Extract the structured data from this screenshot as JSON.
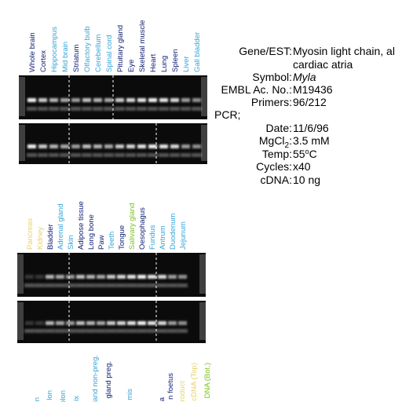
{
  "panels": [
    {
      "lanes": [
        {
          "label": "Whole brain",
          "color": "#0a1a6e"
        },
        {
          "label": "Cortex",
          "color": "#0a1a6e"
        },
        {
          "label": "Hippocampus",
          "color": "#35a3d6"
        },
        {
          "label": "Mid brain",
          "color": "#35a3d6"
        },
        {
          "label": "Striatum",
          "color": "#0a1a6e"
        },
        {
          "label": "Olfactory bulb",
          "color": "#35a3d6"
        },
        {
          "label": "Cerebellum",
          "color": "#35a3d6"
        },
        {
          "label": "Spinal cord",
          "color": "#35a3d6"
        },
        {
          "label": "Pituitary gland",
          "color": "#0a1a6e"
        },
        {
          "label": "Eye",
          "color": "#0a1a6e"
        },
        {
          "label": "Skeletal muscle",
          "color": "#0a1a6e"
        },
        {
          "label": "Heart",
          "color": "#0a1a6e"
        },
        {
          "label": "Lung",
          "color": "#0a1a6e"
        },
        {
          "label": "Spleen",
          "color": "#0a1a6e"
        },
        {
          "label": "Liver",
          "color": "#35a3d6"
        },
        {
          "label": "Gall bladder",
          "color": "#35a3d6"
        }
      ]
    },
    {
      "lanes": [
        {
          "label": "Pancreas",
          "color": "#e8d26a"
        },
        {
          "label": "Kidney",
          "color": "#e8d26a"
        },
        {
          "label": "Bladder",
          "color": "#0a1a6e"
        },
        {
          "label": "Adrenal gland",
          "color": "#35a3d6"
        },
        {
          "label": "Skin",
          "color": "#35a3d6"
        },
        {
          "label": "Adipose tissue",
          "color": "#0a1a6e"
        },
        {
          "label": "Long bone",
          "color": "#0a1a6e"
        },
        {
          "label": "Paw",
          "color": "#0a1a6e"
        },
        {
          "label": "Teeth",
          "color": "#35a3d6"
        },
        {
          "label": "Tongue",
          "color": "#0a1a6e"
        },
        {
          "label": "Salivary gland",
          "color": "#7cc21e"
        },
        {
          "label": "Oesophagus",
          "color": "#0a1a6e"
        },
        {
          "label": "Fundus",
          "color": "#35a3d6"
        },
        {
          "label": "Antrum",
          "color": "#35a3d6"
        },
        {
          "label": "Duodenum",
          "color": "#35a3d6"
        },
        {
          "label": "Jejunum",
          "color": "#35a3d6"
        }
      ]
    },
    {
      "lanes": [
        {
          "label": "n",
          "color": "#35a3d6"
        },
        {
          "label": "lon",
          "color": "#35a3d6"
        },
        {
          "label": "olon",
          "color": "#35a3d6"
        },
        {
          "label": "ix",
          "color": "#35a3d6"
        },
        {
          "label": "gland non-preg.",
          "color": "#35a3d6"
        },
        {
          "label": "gland preg.",
          "color": "#0a1a6e"
        },
        {
          "label": "mis",
          "color": "#35a3d6"
        },
        {
          "label": "a",
          "color": "#0a1a6e"
        },
        {
          "label": "n foetus",
          "color": "#0a1a6e"
        },
        {
          "label": "roduct",
          "color": "#e8d26a"
        },
        {
          "label": "cDNA (Top)",
          "color": "#e8d26a"
        },
        {
          "label": "DNA (Bot.)",
          "color": "#7cc21e"
        }
      ]
    }
  ],
  "info": {
    "gene_label": "Gene/EST:",
    "gene_value": "Myosin light chain, al",
    "gene_value_2": "cardiac atria",
    "symbol_label": "Symbol:",
    "symbol_value": "Myla",
    "embl_label": "EMBL Ac. No.:",
    "embl_value": "M19436",
    "primers_label": "Primers:",
    "primers_value": "96/212",
    "pcr_label": "PCR;",
    "date_label": "Date:",
    "date_value": "11/6/96",
    "mgcl_label": "MgCl",
    "mgcl_sub": "2",
    "mgcl_colon": ":",
    "mgcl_value": "3.5 mM",
    "temp_label": "Temp:",
    "temp_value": "55",
    "temp_sup": "o",
    "temp_unit": "C",
    "cycles_label": "Cycles:",
    "cycles_value": "x40",
    "cdna_label": "cDNA:",
    "cdna_value": "10 ng"
  }
}
